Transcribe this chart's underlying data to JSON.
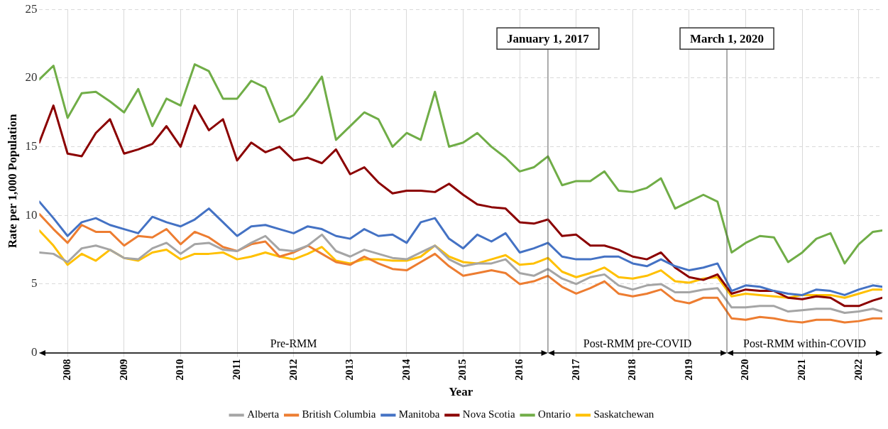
{
  "chart_data": {
    "type": "line",
    "xlabel": "Year",
    "ylabel": "Rate per 1,000 Population",
    "x": [
      "2008-01",
      "2008-04",
      "2008-07",
      "2008-10",
      "2009-01",
      "2009-04",
      "2009-07",
      "2009-10",
      "2010-01",
      "2010-04",
      "2010-07",
      "2010-10",
      "2011-01",
      "2011-04",
      "2011-07",
      "2011-10",
      "2012-01",
      "2012-04",
      "2012-07",
      "2012-10",
      "2013-01",
      "2013-04",
      "2013-07",
      "2013-10",
      "2014-01",
      "2014-04",
      "2014-07",
      "2014-10",
      "2015-01",
      "2015-04",
      "2015-07",
      "2015-10",
      "2016-01",
      "2016-04",
      "2016-07",
      "2016-10",
      "2017-01",
      "2017-04",
      "2017-07",
      "2017-10",
      "2018-01",
      "2018-04",
      "2018-07",
      "2018-10",
      "2019-01",
      "2019-04",
      "2019-07",
      "2019-10",
      "2020-01",
      "2020-04",
      "2020-07",
      "2020-10",
      "2021-01",
      "2021-04",
      "2021-07",
      "2021-10",
      "2022-01",
      "2022-04",
      "2022-07",
      "2022-10",
      "2022-12"
    ],
    "series": [
      {
        "name": "Alberta",
        "color": "#a5a5a5",
        "values": [
          7.3,
          7.2,
          6.6,
          7.6,
          7.8,
          7.5,
          6.9,
          6.8,
          7.6,
          8.0,
          7.2,
          7.9,
          8.0,
          7.5,
          7.4,
          8.0,
          8.5,
          7.5,
          7.4,
          7.8,
          8.6,
          7.4,
          7.0,
          7.5,
          7.2,
          6.9,
          6.8,
          7.3,
          7.8,
          6.8,
          6.3,
          6.5,
          6.5,
          6.8,
          5.8,
          5.6,
          6.1,
          5.4,
          5.0,
          5.5,
          5.7,
          4.9,
          4.6,
          4.9,
          5.0,
          4.4,
          4.4,
          4.6,
          4.7,
          3.3,
          3.3,
          3.4,
          3.4,
          3.0,
          3.1,
          3.2,
          3.2,
          2.9,
          3.0,
          3.2,
          3.0
        ]
      },
      {
        "name": "British Columbia",
        "color": "#ed7d31",
        "values": [
          10.1,
          9.0,
          8.0,
          9.3,
          8.8,
          8.8,
          7.8,
          8.5,
          8.4,
          9.0,
          7.9,
          8.8,
          8.4,
          7.7,
          7.4,
          7.9,
          8.1,
          7.0,
          7.3,
          7.8,
          7.2,
          6.6,
          6.4,
          7.0,
          6.5,
          6.1,
          6.0,
          6.6,
          7.2,
          6.3,
          5.6,
          5.8,
          6.0,
          5.8,
          5.0,
          5.2,
          5.6,
          4.8,
          4.3,
          4.7,
          5.2,
          4.3,
          4.1,
          4.3,
          4.6,
          3.8,
          3.6,
          4.0,
          4.0,
          2.5,
          2.4,
          2.6,
          2.5,
          2.3,
          2.2,
          2.4,
          2.4,
          2.2,
          2.3,
          2.5,
          2.5
        ]
      },
      {
        "name": "Manitoba",
        "color": "#4472c4",
        "values": [
          11.0,
          9.8,
          8.5,
          9.5,
          9.8,
          9.3,
          9.0,
          8.7,
          9.9,
          9.5,
          9.2,
          9.7,
          10.5,
          9.5,
          8.5,
          9.2,
          9.3,
          9.0,
          8.7,
          9.2,
          9.0,
          8.5,
          8.3,
          9.0,
          8.5,
          8.6,
          8.0,
          9.5,
          9.8,
          8.3,
          7.6,
          8.6,
          8.1,
          8.7,
          7.3,
          7.6,
          8.0,
          7.0,
          6.8,
          6.8,
          7.0,
          7.0,
          6.5,
          6.3,
          6.8,
          6.3,
          6.0,
          6.2,
          6.5,
          4.5,
          4.9,
          4.8,
          4.5,
          4.3,
          4.2,
          4.6,
          4.5,
          4.2,
          4.6,
          4.9,
          4.8
        ]
      },
      {
        "name": "Nova Scotia",
        "color": "#8b0000",
        "values": [
          15.3,
          18.0,
          14.5,
          14.3,
          16.0,
          17.0,
          14.5,
          14.8,
          15.2,
          16.5,
          15.0,
          18.0,
          16.2,
          17.0,
          14.0,
          15.3,
          14.6,
          15.0,
          14.0,
          14.2,
          13.8,
          14.8,
          13.0,
          13.5,
          12.4,
          11.6,
          11.8,
          11.8,
          11.7,
          12.3,
          11.5,
          10.8,
          10.6,
          10.5,
          9.5,
          9.4,
          9.7,
          8.5,
          8.6,
          7.8,
          7.8,
          7.5,
          7.0,
          6.8,
          7.3,
          6.2,
          5.5,
          5.3,
          5.7,
          4.3,
          4.6,
          4.5,
          4.5,
          4.0,
          3.9,
          4.1,
          4.0,
          3.4,
          3.4,
          3.8,
          4.0
        ]
      },
      {
        "name": "Ontario",
        "color": "#70ad47",
        "values": [
          19.9,
          20.9,
          17.1,
          18.9,
          19.0,
          18.3,
          17.5,
          19.2,
          16.5,
          18.5,
          18.0,
          21.0,
          20.5,
          18.5,
          18.5,
          19.8,
          19.3,
          16.8,
          17.3,
          18.6,
          20.1,
          15.5,
          16.5,
          17.5,
          17.0,
          15.0,
          16.0,
          15.5,
          19.0,
          15.0,
          15.3,
          16.0,
          15.0,
          14.2,
          13.2,
          13.5,
          14.3,
          12.2,
          12.5,
          12.5,
          13.2,
          11.8,
          11.7,
          12.0,
          12.7,
          10.5,
          11.0,
          11.5,
          11.0,
          7.3,
          8.0,
          8.5,
          8.4,
          6.6,
          7.3,
          8.3,
          8.7,
          6.5,
          7.9,
          8.8,
          8.9
        ]
      },
      {
        "name": "Saskatchewan",
        "color": "#ffc000",
        "values": [
          8.9,
          7.8,
          6.4,
          7.2,
          6.7,
          7.5,
          6.9,
          6.7,
          7.3,
          7.5,
          6.8,
          7.2,
          7.2,
          7.3,
          6.8,
          7.0,
          7.3,
          7.0,
          6.8,
          7.2,
          7.7,
          6.7,
          6.5,
          6.8,
          6.8,
          6.7,
          6.7,
          7.0,
          7.8,
          7.0,
          6.6,
          6.5,
          6.8,
          7.1,
          6.4,
          6.5,
          6.9,
          5.9,
          5.5,
          5.8,
          6.2,
          5.5,
          5.4,
          5.6,
          6.0,
          5.2,
          5.1,
          5.4,
          5.5,
          4.1,
          4.3,
          4.2,
          4.1,
          4.0,
          4.2,
          4.2,
          4.2,
          4.0,
          4.3,
          4.6,
          4.6
        ]
      }
    ],
    "xlim": [
      "2008-01",
      "2022-12"
    ],
    "xticks": [
      {
        "value": "2008-07",
        "label": "2008"
      },
      {
        "value": "2009-07",
        "label": "2009"
      },
      {
        "value": "2010-07",
        "label": "2010"
      },
      {
        "value": "2011-07",
        "label": "2011"
      },
      {
        "value": "2012-07",
        "label": "2012"
      },
      {
        "value": "2013-07",
        "label": "2013"
      },
      {
        "value": "2014-07",
        "label": "2014"
      },
      {
        "value": "2015-07",
        "label": "2015"
      },
      {
        "value": "2016-07",
        "label": "2016"
      },
      {
        "value": "2017-07",
        "label": "2017"
      },
      {
        "value": "2018-07",
        "label": "2018"
      },
      {
        "value": "2019-07",
        "label": "2019"
      },
      {
        "value": "2020-07",
        "label": "2020"
      },
      {
        "value": "2021-07",
        "label": "2021"
      },
      {
        "value": "2022-07",
        "label": "2022"
      }
    ],
    "ylim": [
      0,
      25
    ],
    "yticks": [
      0,
      5,
      10,
      15,
      20,
      25
    ],
    "grid": true,
    "legend": "bottom",
    "marker": "none",
    "line_style": "solid",
    "ref_lines": [
      {
        "axis": "x",
        "value": "2017-01",
        "label": "January 1, 2017",
        "color": "#595959"
      },
      {
        "axis": "x",
        "value": "2020-03",
        "label": "March 1, 2020",
        "color": "#595959"
      }
    ],
    "annotations": [
      "Pre-RMM",
      "Post-RMM pre-COVID",
      "Post-RMM within-COVID"
    ]
  }
}
